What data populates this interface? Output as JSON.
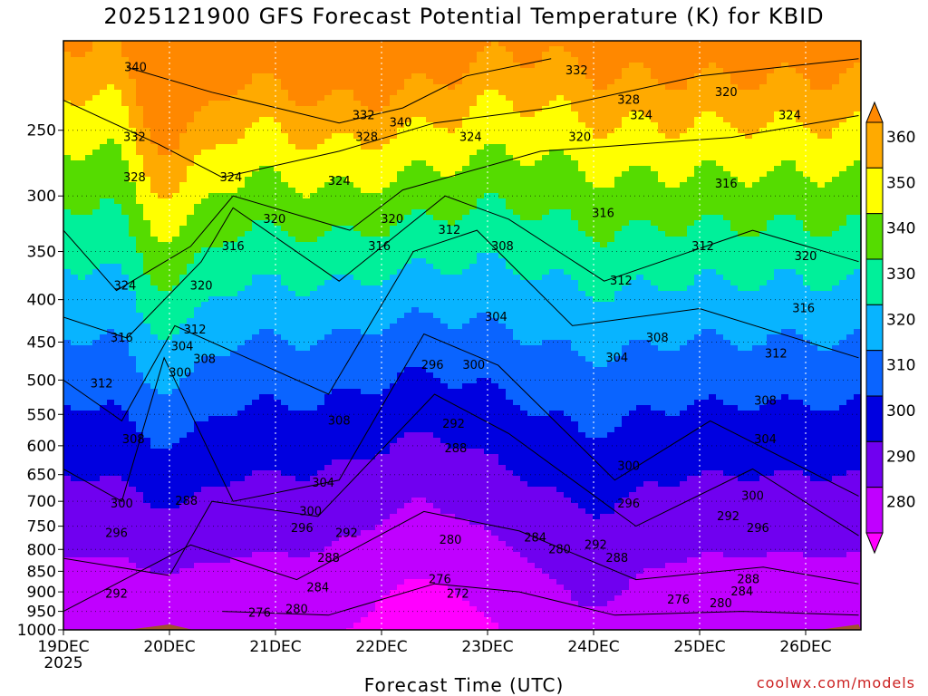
{
  "title": "2025121900 GFS Forecast Potential Temperature (K) for KBID",
  "xlabel": "Forecast Time (UTC)",
  "credit": "coolwx.com/models",
  "chart_data": {
    "type": "heatmap",
    "title": "2025121900 GFS Forecast Potential Temperature (K) for KBID",
    "xlabel": "Forecast Time (UTC)",
    "ylabel": "",
    "x_ticks": [
      "19DEC",
      "20DEC",
      "21DEC",
      "22DEC",
      "23DEC",
      "24DEC",
      "25DEC",
      "26DEC"
    ],
    "x_year": "2025",
    "y_ticks": [
      250,
      300,
      350,
      400,
      450,
      500,
      550,
      600,
      650,
      700,
      750,
      800,
      850,
      900,
      950,
      1000
    ],
    "y_scale": "log-pressure (hPa), inverted",
    "ylim": [
      200,
      1000
    ],
    "xlim_days": [
      0,
      7.5
    ],
    "colorbar": {
      "levels": [
        270,
        280,
        290,
        300,
        310,
        320,
        330,
        340,
        350,
        360
      ],
      "colors": [
        "#ff00ff",
        "#c000ff",
        "#7000f0",
        "#0000e0",
        "#0a64ff",
        "#08b4ff",
        "#00f09a",
        "#55dc00",
        "#ffff00",
        "#ffaa00",
        "#ff8800"
      ],
      "extend": "both"
    },
    "contour_interval": 2,
    "ground_color": "#a0522d",
    "contours": [
      {
        "level": 340,
        "points": [
          [
            0.6,
            210
          ],
          [
            1.4,
            225
          ],
          [
            2.6,
            245
          ],
          [
            3.2,
            235
          ],
          [
            3.8,
            215
          ],
          [
            4.6,
            205
          ]
        ]
      },
      {
        "level": 332,
        "points": [
          [
            0.0,
            230
          ],
          [
            0.9,
            260
          ],
          [
            1.5,
            285
          ],
          [
            2.6,
            265
          ],
          [
            3.5,
            245
          ],
          [
            4.6,
            235
          ],
          [
            6.0,
            215
          ],
          [
            7.5,
            205
          ]
        ]
      },
      {
        "level": 324,
        "points": [
          [
            0.0,
            330
          ],
          [
            0.5,
            390
          ],
          [
            1.2,
            345
          ],
          [
            1.6,
            300
          ],
          [
            2.7,
            330
          ],
          [
            3.2,
            295
          ],
          [
            4.5,
            265
          ],
          [
            6.3,
            255
          ],
          [
            7.5,
            240
          ]
        ]
      },
      {
        "level": 316,
        "points": [
          [
            0.0,
            420
          ],
          [
            0.6,
            445
          ],
          [
            1.3,
            360
          ],
          [
            1.6,
            310
          ],
          [
            2.6,
            380
          ],
          [
            3.6,
            300
          ],
          [
            4.2,
            320
          ],
          [
            5.1,
            380
          ],
          [
            6.5,
            330
          ],
          [
            7.5,
            360
          ]
        ]
      },
      {
        "level": 308,
        "points": [
          [
            0.0,
            500
          ],
          [
            0.55,
            560
          ],
          [
            1.05,
            430
          ],
          [
            2.5,
            520
          ],
          [
            3.3,
            350
          ],
          [
            3.9,
            330
          ],
          [
            4.8,
            430
          ],
          [
            6.0,
            410
          ],
          [
            7.5,
            470
          ]
        ]
      },
      {
        "level": 300,
        "points": [
          [
            0.0,
            640
          ],
          [
            0.55,
            700
          ],
          [
            0.95,
            470
          ],
          [
            1.6,
            700
          ],
          [
            2.6,
            660
          ],
          [
            3.4,
            440
          ],
          [
            4.1,
            480
          ],
          [
            5.2,
            660
          ],
          [
            6.1,
            560
          ],
          [
            7.5,
            690
          ]
        ]
      },
      {
        "level": 292,
        "points": [
          [
            0.0,
            820
          ],
          [
            1.0,
            860
          ],
          [
            1.4,
            700
          ],
          [
            2.4,
            730
          ],
          [
            3.5,
            520
          ],
          [
            4.2,
            580
          ],
          [
            5.4,
            750
          ],
          [
            6.5,
            640
          ],
          [
            7.5,
            770
          ]
        ]
      },
      {
        "level": 284,
        "points": [
          [
            0.0,
            950
          ],
          [
            1.2,
            790
          ],
          [
            2.2,
            870
          ],
          [
            3.4,
            720
          ],
          [
            4.3,
            760
          ],
          [
            5.4,
            870
          ],
          [
            6.6,
            840
          ],
          [
            7.5,
            880
          ]
        ]
      },
      {
        "level": 276,
        "points": [
          [
            1.5,
            950
          ],
          [
            2.5,
            960
          ],
          [
            3.5,
            880
          ],
          [
            4.3,
            900
          ],
          [
            5.2,
            960
          ],
          [
            6.4,
            950
          ],
          [
            7.5,
            960
          ]
        ]
      }
    ],
    "contour_labels": [
      {
        "label": "340",
        "x": 0.68,
        "p": 210
      },
      {
        "label": "332",
        "x": 0.67,
        "p": 255
      },
      {
        "label": "328",
        "x": 0.67,
        "p": 285
      },
      {
        "label": "324",
        "x": 0.58,
        "p": 385
      },
      {
        "label": "316",
        "x": 0.55,
        "p": 445
      },
      {
        "label": "312",
        "x": 0.36,
        "p": 505
      },
      {
        "label": "308",
        "x": 0.66,
        "p": 590
      },
      {
        "label": "300",
        "x": 0.55,
        "p": 705
      },
      {
        "label": "296",
        "x": 0.5,
        "p": 765
      },
      {
        "label": "292",
        "x": 0.5,
        "p": 905
      },
      {
        "label": "320",
        "x": 1.3,
        "p": 385
      },
      {
        "label": "312",
        "x": 1.24,
        "p": 435
      },
      {
        "label": "304",
        "x": 1.12,
        "p": 456
      },
      {
        "label": "308",
        "x": 1.33,
        "p": 472
      },
      {
        "label": "300",
        "x": 1.1,
        "p": 490
      },
      {
        "label": "288",
        "x": 1.16,
        "p": 700
      },
      {
        "label": "324",
        "x": 1.58,
        "p": 285
      },
      {
        "label": "316",
        "x": 1.6,
        "p": 345
      },
      {
        "label": "320",
        "x": 1.99,
        "p": 320
      },
      {
        "label": "324",
        "x": 2.6,
        "p": 288
      },
      {
        "label": "332",
        "x": 2.83,
        "p": 240
      },
      {
        "label": "328",
        "x": 2.86,
        "p": 255
      },
      {
        "label": "340",
        "x": 3.18,
        "p": 245
      },
      {
        "label": "324",
        "x": 3.84,
        "p": 255
      },
      {
        "label": "320",
        "x": 3.1,
        "p": 320
      },
      {
        "label": "316",
        "x": 2.98,
        "p": 345
      },
      {
        "label": "312",
        "x": 3.64,
        "p": 330
      },
      {
        "label": "308",
        "x": 4.14,
        "p": 345
      },
      {
        "label": "304",
        "x": 4.08,
        "p": 420
      },
      {
        "label": "300",
        "x": 3.87,
        "p": 480
      },
      {
        "label": "296",
        "x": 3.48,
        "p": 480
      },
      {
        "label": "292",
        "x": 3.68,
        "p": 565
      },
      {
        "label": "288",
        "x": 3.7,
        "p": 605
      },
      {
        "label": "308",
        "x": 2.6,
        "p": 560
      },
      {
        "label": "304",
        "x": 2.45,
        "p": 665
      },
      {
        "label": "300",
        "x": 2.33,
        "p": 720
      },
      {
        "label": "296",
        "x": 2.25,
        "p": 755
      },
      {
        "label": "292",
        "x": 2.67,
        "p": 765
      },
      {
        "label": "288",
        "x": 2.5,
        "p": 820
      },
      {
        "label": "284",
        "x": 2.4,
        "p": 890
      },
      {
        "label": "280",
        "x": 2.2,
        "p": 945
      },
      {
        "label": "276",
        "x": 1.85,
        "p": 955
      },
      {
        "label": "280",
        "x": 3.65,
        "p": 780
      },
      {
        "label": "276",
        "x": 3.55,
        "p": 870
      },
      {
        "label": "272",
        "x": 3.72,
        "p": 905
      },
      {
        "label": "284",
        "x": 4.45,
        "p": 775
      },
      {
        "label": "280",
        "x": 4.68,
        "p": 800
      },
      {
        "label": "332",
        "x": 4.84,
        "p": 212
      },
      {
        "label": "328",
        "x": 5.33,
        "p": 230
      },
      {
        "label": "324",
        "x": 5.45,
        "p": 240
      },
      {
        "label": "320",
        "x": 4.87,
        "p": 255
      },
      {
        "label": "316",
        "x": 5.09,
        "p": 315
      },
      {
        "label": "312",
        "x": 5.26,
        "p": 380
      },
      {
        "label": "304",
        "x": 5.22,
        "p": 470
      },
      {
        "label": "300",
        "x": 5.33,
        "p": 635
      },
      {
        "label": "296",
        "x": 5.33,
        "p": 705
      },
      {
        "label": "292",
        "x": 5.02,
        "p": 790
      },
      {
        "label": "288",
        "x": 5.22,
        "p": 820
      },
      {
        "label": "308",
        "x": 5.6,
        "p": 445
      },
      {
        "label": "312",
        "x": 6.03,
        "p": 345
      },
      {
        "label": "316",
        "x": 6.25,
        "p": 290
      },
      {
        "label": "320",
        "x": 6.25,
        "p": 225
      },
      {
        "label": "324",
        "x": 6.85,
        "p": 240
      },
      {
        "label": "320",
        "x": 7.0,
        "p": 355
      },
      {
        "label": "316",
        "x": 6.98,
        "p": 410
      },
      {
        "label": "312",
        "x": 6.72,
        "p": 465
      },
      {
        "label": "308",
        "x": 6.62,
        "p": 530
      },
      {
        "label": "304",
        "x": 6.62,
        "p": 590
      },
      {
        "label": "300",
        "x": 6.5,
        "p": 690
      },
      {
        "label": "292",
        "x": 6.27,
        "p": 730
      },
      {
        "label": "296",
        "x": 6.55,
        "p": 755
      },
      {
        "label": "288",
        "x": 6.46,
        "p": 870
      },
      {
        "label": "284",
        "x": 6.4,
        "p": 900
      },
      {
        "label": "280",
        "x": 6.2,
        "p": 930
      },
      {
        "label": "276",
        "x": 5.8,
        "p": 920
      }
    ]
  }
}
